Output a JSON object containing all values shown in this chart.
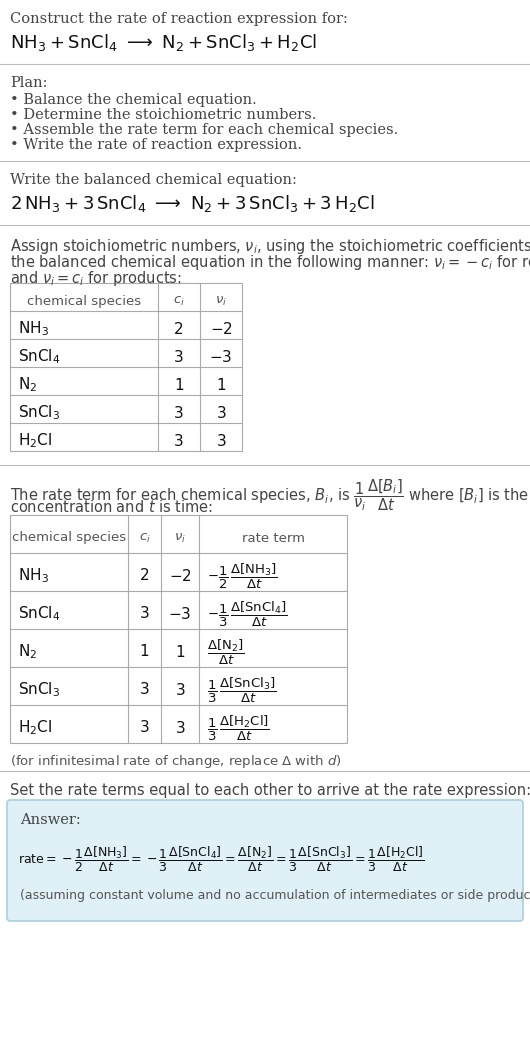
{
  "bg_color": "#ffffff",
  "text_color": "#222222",
  "gray_text": "#444444",
  "title_line1": "Construct the rate of reaction expression for:",
  "plan_header": "Plan:",
  "plan_items": [
    "• Balance the chemical equation.",
    "• Determine the stoichiometric numbers.",
    "• Assemble the rate term for each chemical species.",
    "• Write the rate of reaction expression."
  ],
  "balanced_header": "Write the balanced chemical equation:",
  "stoich_line1": "Assign stoichiometric numbers, $\\nu_i$, using the stoichiometric coefficients, $c_i$, from",
  "stoich_line2": "the balanced chemical equation in the following manner: $\\nu_i = -c_i$ for reactants",
  "stoich_line3": "and $\\nu_i = c_i$ for products:",
  "rate_line1": "The rate term for each chemical species, $B_i$, is $\\frac{1}{\\nu_i}\\frac{\\Delta[B_i]}{\\Delta t}$ where $[B_i]$ is the amount",
  "rate_line2": "concentration and $t$ is time:",
  "infinitesimal_note": "(for infinitesimal rate of change, replace Δ with $d$)",
  "set_equal_header": "Set the rate terms equal to each other to arrive at the rate expression:",
  "answer_box_color": "#dff0f7",
  "answer_box_border": "#aacfe0",
  "answer_label": "Answer:",
  "footnote": "(assuming constant volume and no accumulation of intermediates or side products)",
  "hline_color": "#bbbbbb",
  "table_line_color": "#aaaaaa",
  "font_size_body": 10.5,
  "font_size_chem": 12.5,
  "font_size_table": 10.5
}
